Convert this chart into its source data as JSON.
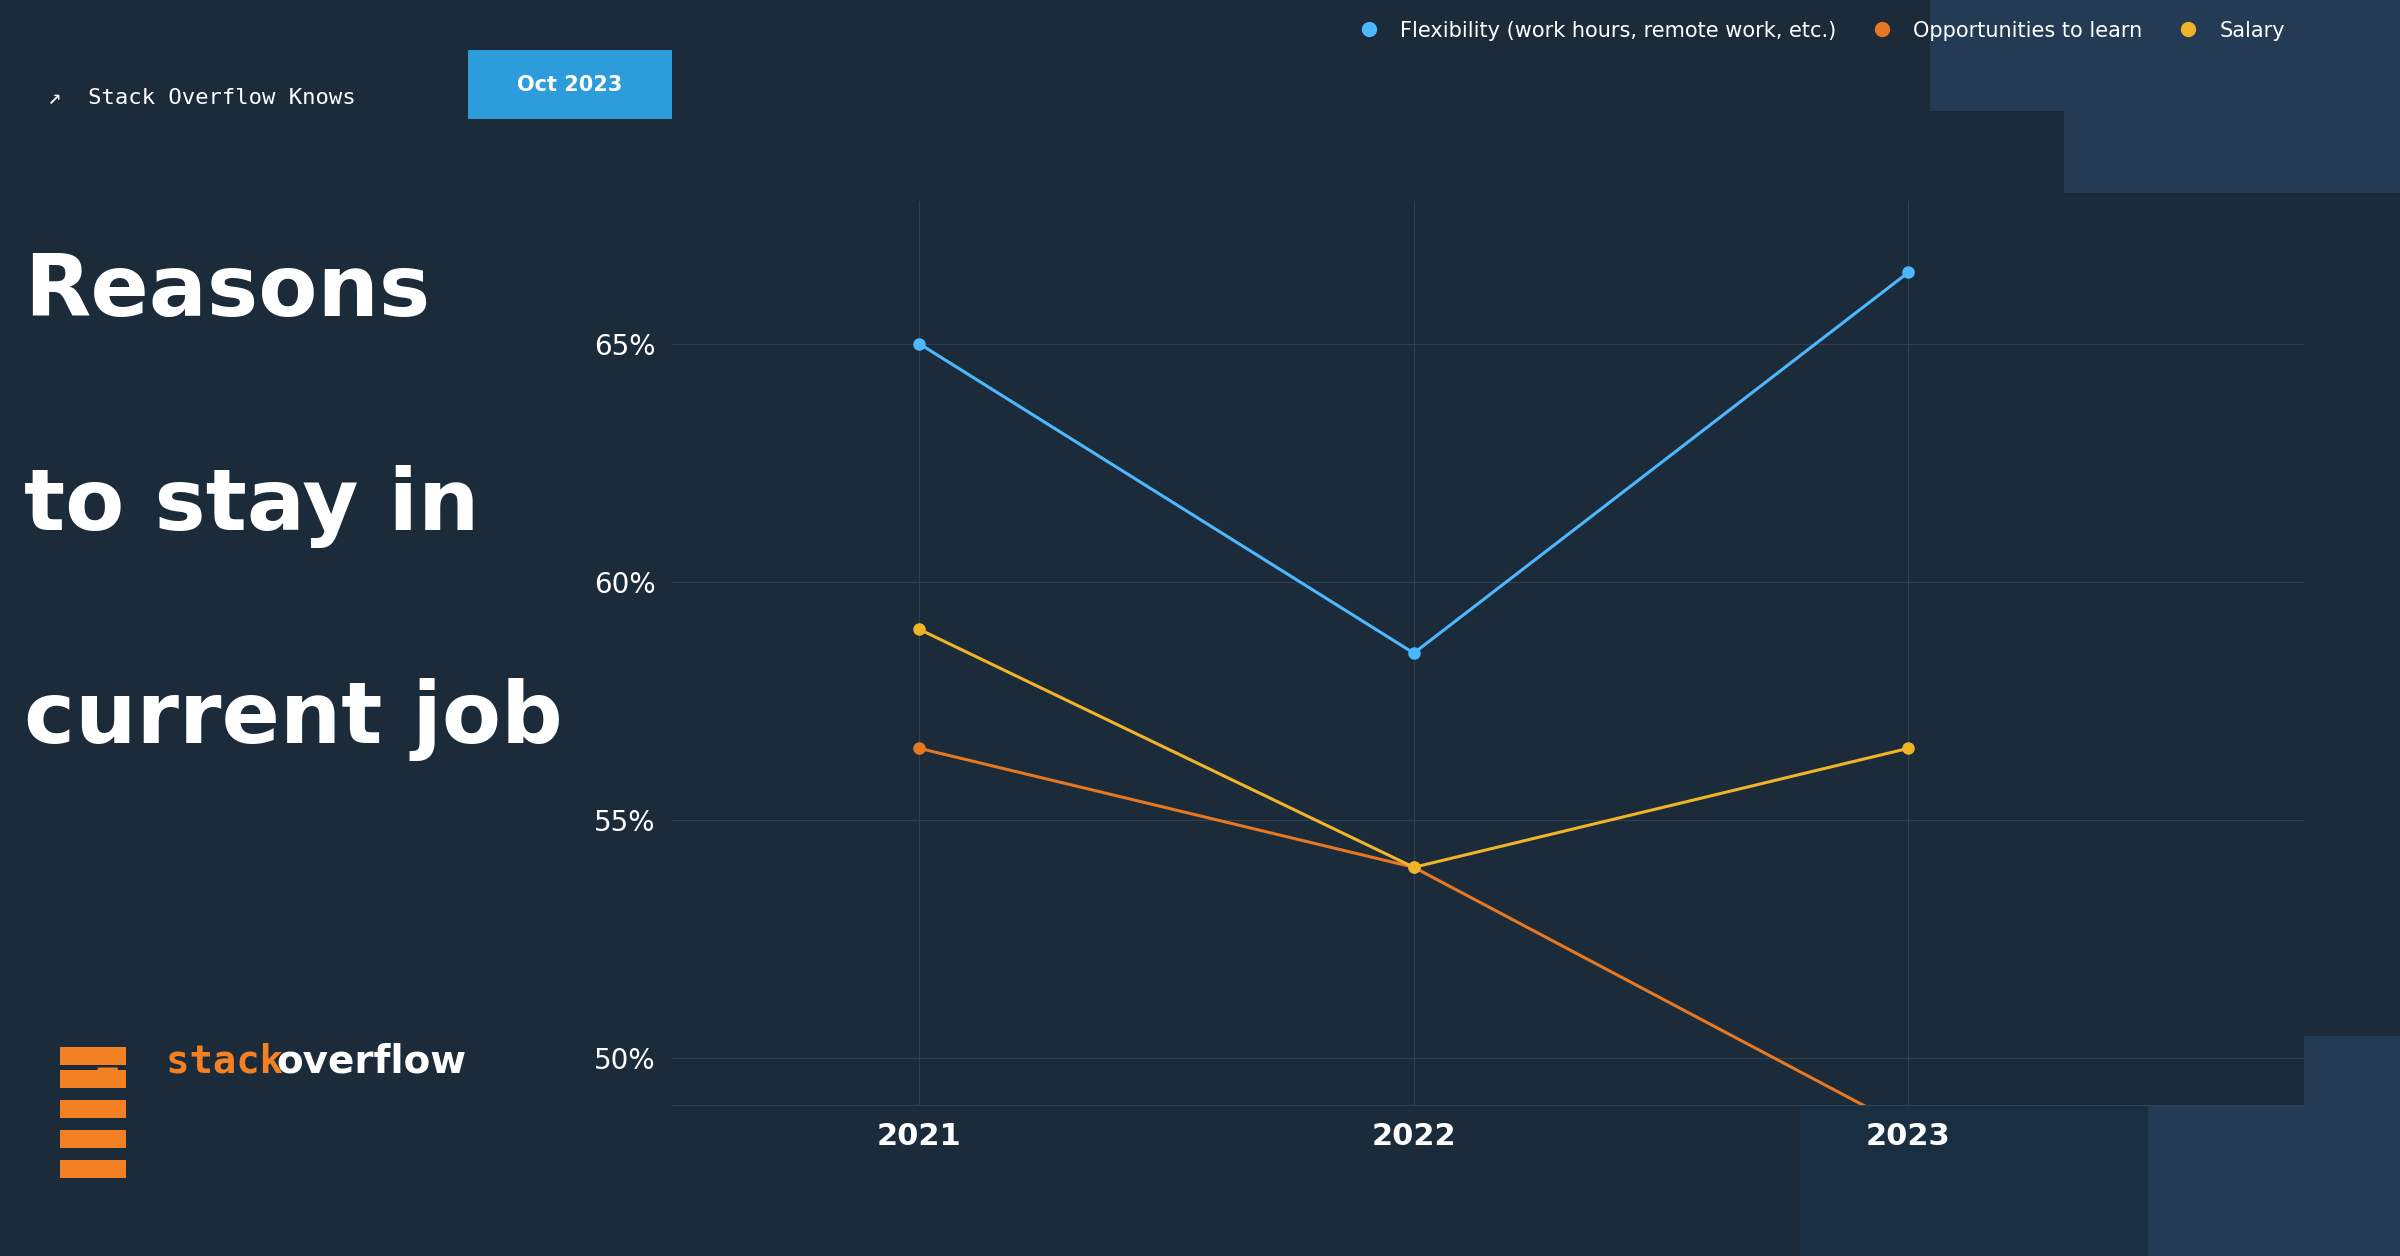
{
  "years": [
    2021,
    2022,
    2023
  ],
  "series": [
    {
      "name": "Flexibility (work hours, remote work, etc.)",
      "values": [
        65.0,
        58.5,
        66.5
      ],
      "color": "#4db8ff",
      "marker": "o",
      "marker_color": "#4db8ff"
    },
    {
      "name": "Opportunities to learn",
      "values": [
        56.5,
        54.0,
        48.5
      ],
      "color": "#e87722",
      "marker": "o",
      "marker_color": "#e87722"
    },
    {
      "name": "Salary",
      "values": [
        59.0,
        54.0,
        56.5
      ],
      "color": "#f0b429",
      "marker": "o",
      "marker_color": "#f0b429"
    }
  ],
  "ylim": [
    49,
    68
  ],
  "yticks": [
    50,
    55,
    60,
    65
  ],
  "ytick_labels": [
    "50%",
    "55%",
    "60%",
    "65%"
  ],
  "xlim": [
    2020.5,
    2023.8
  ],
  "background_color": "#1c2b3a",
  "grid_color": "#2e4057",
  "text_color": "#ffffff",
  "axis_label_color": "#aabbcc",
  "title_line1": "Reasons",
  "title_line2": "to stay in",
  "title_line3": "current job",
  "header_text": "Stack Overflow Knows",
  "badge_text": "Oct 2023",
  "badge_color": "#2d9cdb",
  "line_width": 2.2,
  "marker_size": 8,
  "font_family": "DejaVu Sans"
}
